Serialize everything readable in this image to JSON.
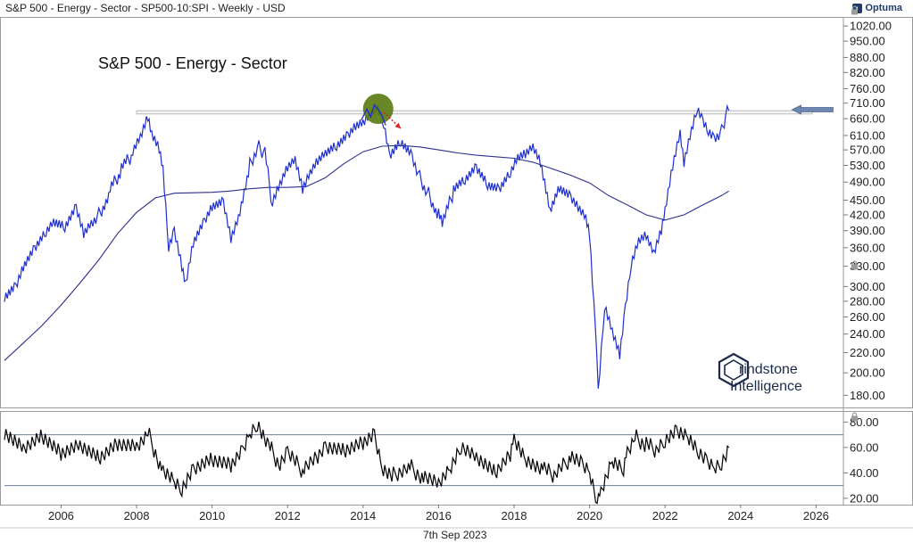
{
  "header": {
    "series_title": "S&P 500 - Energy - Sector  - SP500-10:SPI - Weekly - USD",
    "brand": "Optuma"
  },
  "footer": {
    "date": "7th Sep 2023"
  },
  "watermark": {
    "line1": "rindstone",
    "line2": "Intelligence"
  },
  "colors": {
    "price": "#1f2fcf",
    "ma": "#2b2f8f",
    "resistance": "#b8b8b8",
    "rsi": "#000000",
    "rsi_bands": "#6f7f9a",
    "marker": "#5a7a10",
    "arrow_down": "#e02020",
    "arrow_right": "#6f86b0"
  },
  "chart_data": [
    {
      "type": "line",
      "title": "S&P 500 - Energy - Sector",
      "y_scale": "log",
      "ylim": [
        170,
        1060
      ],
      "xlim": [
        2004.5,
        2026.7
      ],
      "x_ticks": [
        "2006",
        "2008",
        "2010",
        "2012",
        "2014",
        "2016",
        "2018",
        "2020",
        "2022",
        "2024",
        "2026"
      ],
      "y_ticks": [
        "1020.00",
        "950.00",
        "880.00",
        "820.00",
        "760.00",
        "710.00",
        "660.00",
        "610.00",
        "570.00",
        "530.00",
        "490.00",
        "450.00",
        "420.00",
        "390.00",
        "360.00",
        "330.00",
        "300.00",
        "280.00",
        "260.00",
        "240.00",
        "220.00",
        "200.00",
        "180.00"
      ],
      "grid": false,
      "series": [
        {
          "role": "price",
          "points": [
            [
              2004.5,
              285
            ],
            [
              2004.8,
              300
            ],
            [
              2005.0,
              330
            ],
            [
              2005.3,
              360
            ],
            [
              2005.6,
              390
            ],
            [
              2005.8,
              410
            ],
            [
              2006.1,
              400
            ],
            [
              2006.4,
              440
            ],
            [
              2006.6,
              390
            ],
            [
              2006.8,
              410
            ],
            [
              2007.0,
              420
            ],
            [
              2007.3,
              470
            ],
            [
              2007.6,
              520
            ],
            [
              2007.9,
              560
            ],
            [
              2008.1,
              600
            ],
            [
              2008.3,
              660
            ],
            [
              2008.4,
              610
            ],
            [
              2008.6,
              570
            ],
            [
              2008.7,
              520
            ],
            [
              2008.85,
              360
            ],
            [
              2009.0,
              390
            ],
            [
              2009.2,
              330
            ],
            [
              2009.3,
              305
            ],
            [
              2009.5,
              370
            ],
            [
              2009.8,
              410
            ],
            [
              2010.0,
              440
            ],
            [
              2010.3,
              450
            ],
            [
              2010.5,
              380
            ],
            [
              2010.7,
              420
            ],
            [
              2011.0,
              530
            ],
            [
              2011.2,
              580
            ],
            [
              2011.4,
              560
            ],
            [
              2011.6,
              440
            ],
            [
              2011.8,
              480
            ],
            [
              2012.0,
              520
            ],
            [
              2012.2,
              540
            ],
            [
              2012.4,
              470
            ],
            [
              2012.6,
              510
            ],
            [
              2012.8,
              540
            ],
            [
              2013.0,
              560
            ],
            [
              2013.3,
              580
            ],
            [
              2013.6,
              610
            ],
            [
              2013.8,
              640
            ],
            [
              2014.0,
              650
            ],
            [
              2014.2,
              680
            ],
            [
              2014.4,
              700
            ],
            [
              2014.55,
              650
            ],
            [
              2014.7,
              560
            ],
            [
              2015.0,
              600
            ],
            [
              2015.3,
              560
            ],
            [
              2015.5,
              500
            ],
            [
              2015.7,
              470
            ],
            [
              2016.0,
              420
            ],
            [
              2016.1,
              400
            ],
            [
              2016.4,
              470
            ],
            [
              2016.7,
              490
            ],
            [
              2017.0,
              520
            ],
            [
              2017.3,
              480
            ],
            [
              2017.6,
              470
            ],
            [
              2017.9,
              510
            ],
            [
              2018.1,
              550
            ],
            [
              2018.3,
              560
            ],
            [
              2018.5,
              580
            ],
            [
              2018.7,
              540
            ],
            [
              2018.95,
              430
            ],
            [
              2019.2,
              480
            ],
            [
              2019.5,
              460
            ],
            [
              2019.7,
              440
            ],
            [
              2019.9,
              420
            ],
            [
              2020.0,
              390
            ],
            [
              2020.15,
              250
            ],
            [
              2020.23,
              180
            ],
            [
              2020.4,
              270
            ],
            [
              2020.6,
              240
            ],
            [
              2020.8,
              215
            ],
            [
              2020.95,
              270
            ],
            [
              2021.1,
              330
            ],
            [
              2021.3,
              370
            ],
            [
              2021.5,
              380
            ],
            [
              2021.7,
              350
            ],
            [
              2021.9,
              390
            ],
            [
              2022.0,
              430
            ],
            [
              2022.2,
              530
            ],
            [
              2022.4,
              620
            ],
            [
              2022.5,
              540
            ],
            [
              2022.7,
              630
            ],
            [
              2022.85,
              700
            ],
            [
              2023.0,
              660
            ],
            [
              2023.15,
              630
            ],
            [
              2023.3,
              610
            ],
            [
              2023.5,
              620
            ],
            [
              2023.6,
              670
            ],
            [
              2023.69,
              685
            ]
          ]
        },
        {
          "role": "moving-average",
          "points": [
            [
              2004.5,
              212
            ],
            [
              2005.0,
              230
            ],
            [
              2005.5,
              250
            ],
            [
              2006.0,
              275
            ],
            [
              2006.5,
              305
            ],
            [
              2007.0,
              340
            ],
            [
              2007.5,
              385
            ],
            [
              2008.0,
              425
            ],
            [
              2008.5,
              455
            ],
            [
              2009.0,
              465
            ],
            [
              2009.5,
              466
            ],
            [
              2010.0,
              467
            ],
            [
              2010.5,
              470
            ],
            [
              2011.0,
              475
            ],
            [
              2011.5,
              478
            ],
            [
              2012.0,
              478
            ],
            [
              2012.5,
              480
            ],
            [
              2013.0,
              500
            ],
            [
              2013.5,
              535
            ],
            [
              2014.0,
              565
            ],
            [
              2014.5,
              580
            ],
            [
              2015.0,
              582
            ],
            [
              2015.5,
              578
            ],
            [
              2016.0,
              570
            ],
            [
              2016.5,
              562
            ],
            [
              2017.0,
              556
            ],
            [
              2017.5,
              552
            ],
            [
              2018.0,
              548
            ],
            [
              2018.5,
              538
            ],
            [
              2019.0,
              522
            ],
            [
              2019.5,
              506
            ],
            [
              2020.0,
              488
            ],
            [
              2020.5,
              460
            ],
            [
              2021.0,
              440
            ],
            [
              2021.5,
              420
            ],
            [
              2022.0,
              410
            ],
            [
              2022.5,
              420
            ],
            [
              2023.0,
              440
            ],
            [
              2023.5,
              460
            ],
            [
              2023.69,
              470
            ]
          ]
        }
      ],
      "annotations": {
        "resistance_level": 680,
        "resistance_range": [
          2008.0,
          2025.9
        ],
        "marker": [
          2014.4,
          680
        ],
        "arrow_down": [
          [
            2014.55,
            680
          ],
          [
            2015.0,
            630
          ]
        ],
        "arrow_right_at": [
          2025.6,
          680
        ]
      }
    },
    {
      "type": "line",
      "role": "rsi",
      "ylim": [
        15,
        88
      ],
      "y_ticks": [
        "80.00",
        "60.00",
        "40.00",
        "20.00"
      ],
      "bands": [
        70,
        30
      ],
      "points": [
        [
          2004.5,
          70
        ],
        [
          2005.0,
          58
        ],
        [
          2005.5,
          68
        ],
        [
          2006.0,
          55
        ],
        [
          2006.5,
          62
        ],
        [
          2007.0,
          52
        ],
        [
          2007.5,
          64
        ],
        [
          2008.0,
          62
        ],
        [
          2008.3,
          72
        ],
        [
          2008.7,
          40
        ],
        [
          2009.0,
          32
        ],
        [
          2009.2,
          26
        ],
        [
          2009.5,
          42
        ],
        [
          2010.0,
          50
        ],
        [
          2010.5,
          46
        ],
        [
          2010.8,
          58
        ],
        [
          2011.0,
          72
        ],
        [
          2011.2,
          80
        ],
        [
          2011.5,
          62
        ],
        [
          2011.8,
          45
        ],
        [
          2012.0,
          55
        ],
        [
          2012.4,
          42
        ],
        [
          2012.8,
          52
        ],
        [
          2013.0,
          60
        ],
        [
          2013.5,
          57
        ],
        [
          2014.0,
          64
        ],
        [
          2014.3,
          71
        ],
        [
          2014.5,
          45
        ],
        [
          2014.8,
          38
        ],
        [
          2015.2,
          46
        ],
        [
          2015.6,
          36
        ],
        [
          2016.0,
          30
        ],
        [
          2016.3,
          42
        ],
        [
          2016.6,
          60
        ],
        [
          2017.0,
          52
        ],
        [
          2017.5,
          40
        ],
        [
          2017.9,
          55
        ],
        [
          2018.0,
          68
        ],
        [
          2018.3,
          52
        ],
        [
          2018.8,
          42
        ],
        [
          2019.1,
          38
        ],
        [
          2019.5,
          52
        ],
        [
          2019.8,
          46
        ],
        [
          2020.0,
          40
        ],
        [
          2020.2,
          16
        ],
        [
          2020.3,
          25
        ],
        [
          2020.6,
          50
        ],
        [
          2020.9,
          44
        ],
        [
          2021.0,
          58
        ],
        [
          2021.2,
          68
        ],
        [
          2021.5,
          62
        ],
        [
          2021.8,
          58
        ],
        [
          2022.0,
          64
        ],
        [
          2022.3,
          72
        ],
        [
          2022.6,
          68
        ],
        [
          2022.9,
          56
        ],
        [
          2023.1,
          50
        ],
        [
          2023.3,
          45
        ],
        [
          2023.5,
          49
        ],
        [
          2023.69,
          60
        ]
      ]
    }
  ]
}
